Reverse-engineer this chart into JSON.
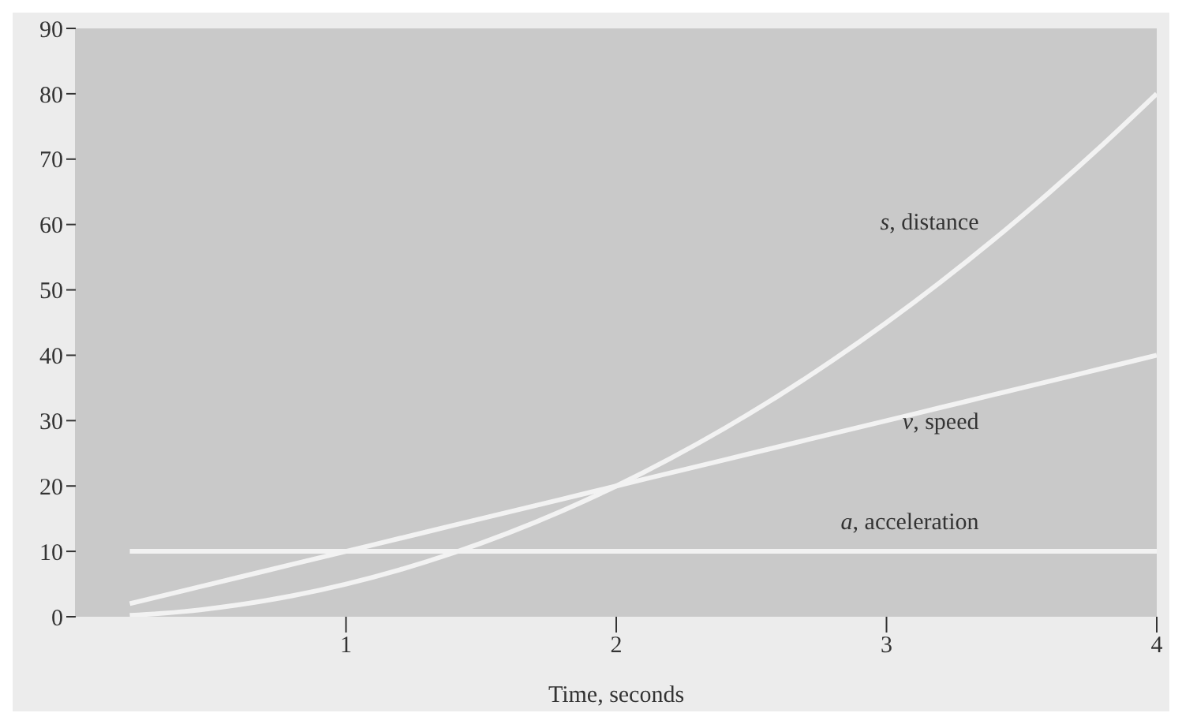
{
  "chart_data": {
    "type": "line",
    "xlabel": "Time, seconds",
    "x": [
      0.2,
      0.4,
      0.6,
      0.8,
      1,
      1.2,
      1.4,
      1.6,
      1.8,
      2,
      2.2,
      2.4,
      2.6,
      2.8,
      3,
      3.2,
      3.4,
      3.6,
      3.8,
      4
    ],
    "series": [
      {
        "name": "s, distance",
        "color": "#f2f2f2",
        "values": [
          0.2,
          0.8,
          1.8,
          3.2,
          5,
          7.2,
          9.8,
          12.8,
          16.2,
          20,
          24.2,
          28.8,
          33.8,
          39.2,
          45,
          51.2,
          57.8,
          64.8,
          72.2,
          80
        ]
      },
      {
        "name": "v, speed",
        "color": "#f2f2f2",
        "values": [
          2,
          4,
          6,
          8,
          10,
          12,
          14,
          16,
          18,
          20,
          22,
          24,
          26,
          28,
          30,
          32,
          34,
          36,
          38,
          40
        ]
      },
      {
        "name": "a, acceleration",
        "color": "#f2f2f2",
        "values": [
          10,
          10,
          10,
          10,
          10,
          10,
          10,
          10,
          10,
          10,
          10,
          10,
          10,
          10,
          10,
          10,
          10,
          10,
          10,
          10
        ]
      }
    ],
    "xlim": [
      0,
      4
    ],
    "xticks": [
      1,
      2,
      3,
      4
    ],
    "ylim": [
      0,
      90
    ],
    "yticks": [
      0,
      10,
      20,
      30,
      40,
      50,
      60,
      70,
      80,
      90
    ],
    "grid": false,
    "legend": false,
    "marker": "none",
    "line_style": "solid"
  }
}
